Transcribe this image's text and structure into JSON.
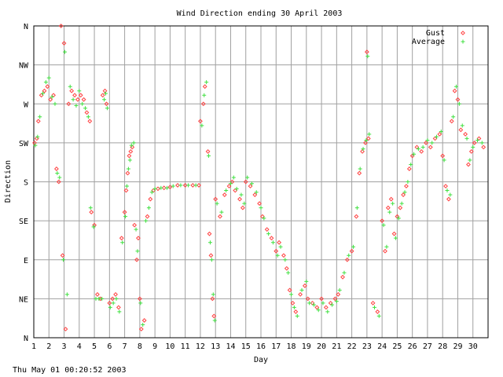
{
  "chart_data": {
    "type": "scatter",
    "title": "Wind Direction ending 30 April 2003",
    "xlabel": "Day",
    "ylabel": "Direction",
    "xlim": [
      1,
      31
    ],
    "ylim": [
      0,
      360
    ],
    "grid": true,
    "legend": "top-right",
    "x_ticks": [
      1,
      2,
      3,
      4,
      5,
      6,
      7,
      8,
      9,
      10,
      11,
      12,
      13,
      14,
      15,
      16,
      17,
      18,
      19,
      20,
      21,
      22,
      23,
      24,
      25,
      26,
      27,
      28,
      29,
      30
    ],
    "y_ticks": [
      {
        "value": 0,
        "label": "N"
      },
      {
        "value": 45,
        "label": "NE"
      },
      {
        "value": 90,
        "label": "E"
      },
      {
        "value": 135,
        "label": "SE"
      },
      {
        "value": 180,
        "label": "S"
      },
      {
        "value": 225,
        "label": "SW"
      },
      {
        "value": 270,
        "label": "W"
      },
      {
        "value": 315,
        "label": "NW"
      },
      {
        "value": 360,
        "label": "N"
      }
    ],
    "series": [
      {
        "name": "Gust",
        "color": "#ff4040",
        "marker": "diamond",
        "points": [
          [
            1.05,
            225
          ],
          [
            1.2,
            230
          ],
          [
            1.3,
            250
          ],
          [
            1.5,
            280
          ],
          [
            1.7,
            285
          ],
          [
            1.9,
            290
          ],
          [
            2.1,
            275
          ],
          [
            2.3,
            280
          ],
          [
            2.5,
            195
          ],
          [
            2.65,
            180
          ],
          [
            2.8,
            360
          ],
          [
            2.9,
            95
          ],
          [
            3.0,
            340
          ],
          [
            3.1,
            10
          ],
          [
            3.3,
            270
          ],
          [
            3.5,
            285
          ],
          [
            3.7,
            280
          ],
          [
            3.9,
            275
          ],
          [
            4.1,
            280
          ],
          [
            4.3,
            275
          ],
          [
            4.5,
            260
          ],
          [
            4.7,
            250
          ],
          [
            4.8,
            145
          ],
          [
            5.0,
            130
          ],
          [
            5.2,
            50
          ],
          [
            5.4,
            45
          ],
          [
            5.55,
            280
          ],
          [
            5.7,
            285
          ],
          [
            5.8,
            270
          ],
          [
            6.0,
            40
          ],
          [
            6.2,
            45
          ],
          [
            6.4,
            50
          ],
          [
            6.6,
            35
          ],
          [
            6.8,
            115
          ],
          [
            7.0,
            145
          ],
          [
            7.1,
            170
          ],
          [
            7.2,
            190
          ],
          [
            7.3,
            210
          ],
          [
            7.4,
            215
          ],
          [
            7.5,
            220
          ],
          [
            7.65,
            130
          ],
          [
            7.8,
            90
          ],
          [
            7.9,
            115
          ],
          [
            8.0,
            45
          ],
          [
            8.1,
            10
          ],
          [
            8.3,
            20
          ],
          [
            8.5,
            140
          ],
          [
            8.7,
            160
          ],
          [
            8.9,
            170
          ],
          [
            9.2,
            172
          ],
          [
            9.6,
            173
          ],
          [
            10.0,
            174
          ],
          [
            10.5,
            176
          ],
          [
            11.0,
            176
          ],
          [
            11.5,
            176
          ],
          [
            11.9,
            176
          ],
          [
            12.0,
            250
          ],
          [
            12.2,
            270
          ],
          [
            12.3,
            290
          ],
          [
            12.5,
            215
          ],
          [
            12.6,
            120
          ],
          [
            12.7,
            95
          ],
          [
            12.8,
            45
          ],
          [
            12.9,
            25
          ],
          [
            13.0,
            160
          ],
          [
            13.3,
            140
          ],
          [
            13.6,
            165
          ],
          [
            13.9,
            175
          ],
          [
            14.1,
            180
          ],
          [
            14.3,
            170
          ],
          [
            14.6,
            160
          ],
          [
            14.8,
            150
          ],
          [
            15.0,
            180
          ],
          [
            15.3,
            175
          ],
          [
            15.6,
            165
          ],
          [
            15.9,
            155
          ],
          [
            16.1,
            140
          ],
          [
            16.4,
            125
          ],
          [
            16.7,
            115
          ],
          [
            17.0,
            100
          ],
          [
            17.2,
            110
          ],
          [
            17.5,
            95
          ],
          [
            17.7,
            80
          ],
          [
            17.9,
            55
          ],
          [
            18.1,
            40
          ],
          [
            18.3,
            30
          ],
          [
            18.6,
            50
          ],
          [
            18.9,
            60
          ],
          [
            19.1,
            45
          ],
          [
            19.4,
            40
          ],
          [
            19.7,
            35
          ],
          [
            20.0,
            45
          ],
          [
            20.3,
            35
          ],
          [
            20.6,
            40
          ],
          [
            20.9,
            45
          ],
          [
            21.1,
            50
          ],
          [
            21.4,
            70
          ],
          [
            21.7,
            90
          ],
          [
            22.0,
            100
          ],
          [
            22.3,
            140
          ],
          [
            22.5,
            190
          ],
          [
            22.7,
            215
          ],
          [
            22.9,
            225
          ],
          [
            23.1,
            230
          ],
          [
            23.0,
            330
          ],
          [
            23.4,
            40
          ],
          [
            23.7,
            30
          ],
          [
            24.0,
            135
          ],
          [
            24.2,
            100
          ],
          [
            24.4,
            150
          ],
          [
            24.6,
            160
          ],
          [
            24.8,
            120
          ],
          [
            25.0,
            140
          ],
          [
            25.2,
            150
          ],
          [
            25.4,
            165
          ],
          [
            25.6,
            175
          ],
          [
            25.8,
            195
          ],
          [
            26.0,
            210
          ],
          [
            26.3,
            220
          ],
          [
            26.6,
            215
          ],
          [
            26.9,
            225
          ],
          [
            27.2,
            220
          ],
          [
            27.5,
            230
          ],
          [
            27.8,
            235
          ],
          [
            28.0,
            210
          ],
          [
            28.2,
            175
          ],
          [
            28.4,
            160
          ],
          [
            28.6,
            250
          ],
          [
            28.8,
            285
          ],
          [
            29.0,
            275
          ],
          [
            29.2,
            240
          ],
          [
            29.5,
            235
          ],
          [
            29.7,
            200
          ],
          [
            29.9,
            215
          ],
          [
            30.1,
            225
          ],
          [
            30.4,
            230
          ],
          [
            30.7,
            220
          ]
        ]
      },
      {
        "name": "Average",
        "color": "#40e040",
        "marker": "plus",
        "points": [
          [
            1.1,
            222
          ],
          [
            1.25,
            232
          ],
          [
            1.4,
            255
          ],
          [
            1.6,
            282
          ],
          [
            1.8,
            295
          ],
          [
            2.0,
            300
          ],
          [
            2.2,
            278
          ],
          [
            2.4,
            270
          ],
          [
            2.55,
            190
          ],
          [
            2.7,
            185
          ],
          [
            2.95,
            90
          ],
          [
            3.05,
            330
          ],
          [
            3.2,
            50
          ],
          [
            3.4,
            290
          ],
          [
            3.6,
            275
          ],
          [
            3.8,
            268
          ],
          [
            4.0,
            285
          ],
          [
            4.2,
            270
          ],
          [
            4.4,
            265
          ],
          [
            4.6,
            255
          ],
          [
            4.75,
            150
          ],
          [
            4.95,
            128
          ],
          [
            5.1,
            45
          ],
          [
            5.3,
            45
          ],
          [
            5.5,
            45
          ],
          [
            5.65,
            275
          ],
          [
            5.75,
            282
          ],
          [
            5.85,
            265
          ],
          [
            6.05,
            35
          ],
          [
            6.25,
            40
          ],
          [
            6.45,
            45
          ],
          [
            6.65,
            30
          ],
          [
            6.85,
            110
          ],
          [
            7.05,
            140
          ],
          [
            7.15,
            175
          ],
          [
            7.25,
            195
          ],
          [
            7.35,
            205
          ],
          [
            7.45,
            222
          ],
          [
            7.6,
            225
          ],
          [
            7.75,
            125
          ],
          [
            7.85,
            100
          ],
          [
            8.05,
            40
          ],
          [
            8.2,
            15
          ],
          [
            8.4,
            135
          ],
          [
            8.6,
            150
          ],
          [
            8.8,
            168
          ],
          [
            9.0,
            172
          ],
          [
            9.4,
            173
          ],
          [
            9.8,
            173
          ],
          [
            10.2,
            175
          ],
          [
            10.7,
            176
          ],
          [
            11.2,
            176
          ],
          [
            11.7,
            176
          ],
          [
            12.1,
            245
          ],
          [
            12.25,
            280
          ],
          [
            12.4,
            295
          ],
          [
            12.55,
            210
          ],
          [
            12.65,
            110
          ],
          [
            12.75,
            90
          ],
          [
            12.85,
            50
          ],
          [
            12.95,
            20
          ],
          [
            13.1,
            155
          ],
          [
            13.4,
            145
          ],
          [
            13.7,
            170
          ],
          [
            14.0,
            178
          ],
          [
            14.2,
            185
          ],
          [
            14.4,
            172
          ],
          [
            14.7,
            165
          ],
          [
            14.9,
            155
          ],
          [
            15.1,
            185
          ],
          [
            15.4,
            178
          ],
          [
            15.7,
            168
          ],
          [
            16.0,
            150
          ],
          [
            16.2,
            138
          ],
          [
            16.5,
            120
          ],
          [
            16.8,
            110
          ],
          [
            17.1,
            95
          ],
          [
            17.3,
            105
          ],
          [
            17.6,
            90
          ],
          [
            17.8,
            75
          ],
          [
            18.0,
            50
          ],
          [
            18.2,
            35
          ],
          [
            18.4,
            25
          ],
          [
            18.7,
            55
          ],
          [
            19.0,
            65
          ],
          [
            19.2,
            40
          ],
          [
            19.5,
            38
          ],
          [
            19.8,
            32
          ],
          [
            20.1,
            40
          ],
          [
            20.4,
            30
          ],
          [
            20.7,
            38
          ],
          [
            21.0,
            42
          ],
          [
            21.2,
            55
          ],
          [
            21.5,
            75
          ],
          [
            21.8,
            95
          ],
          [
            22.1,
            105
          ],
          [
            22.35,
            150
          ],
          [
            22.55,
            195
          ],
          [
            22.75,
            218
          ],
          [
            22.95,
            228
          ],
          [
            23.15,
            235
          ],
          [
            23.05,
            325
          ],
          [
            23.5,
            35
          ],
          [
            23.8,
            25
          ],
          [
            24.1,
            130
          ],
          [
            24.3,
            105
          ],
          [
            24.5,
            145
          ],
          [
            24.7,
            155
          ],
          [
            24.9,
            115
          ],
          [
            25.1,
            138
          ],
          [
            25.3,
            155
          ],
          [
            25.5,
            168
          ],
          [
            25.7,
            180
          ],
          [
            25.9,
            200
          ],
          [
            26.1,
            212
          ],
          [
            26.4,
            218
          ],
          [
            26.7,
            220
          ],
          [
            27.0,
            228
          ],
          [
            27.3,
            225
          ],
          [
            27.6,
            232
          ],
          [
            27.9,
            238
          ],
          [
            28.1,
            205
          ],
          [
            28.3,
            170
          ],
          [
            28.5,
            165
          ],
          [
            28.7,
            255
          ],
          [
            28.9,
            290
          ],
          [
            29.1,
            270
          ],
          [
            29.3,
            245
          ],
          [
            29.6,
            230
          ],
          [
            29.8,
            205
          ],
          [
            30.0,
            220
          ],
          [
            30.3,
            228
          ],
          [
            30.6,
            225
          ]
        ]
      }
    ]
  },
  "footer": {
    "timestamp": "Thu May 01 00:20:52 2003"
  }
}
